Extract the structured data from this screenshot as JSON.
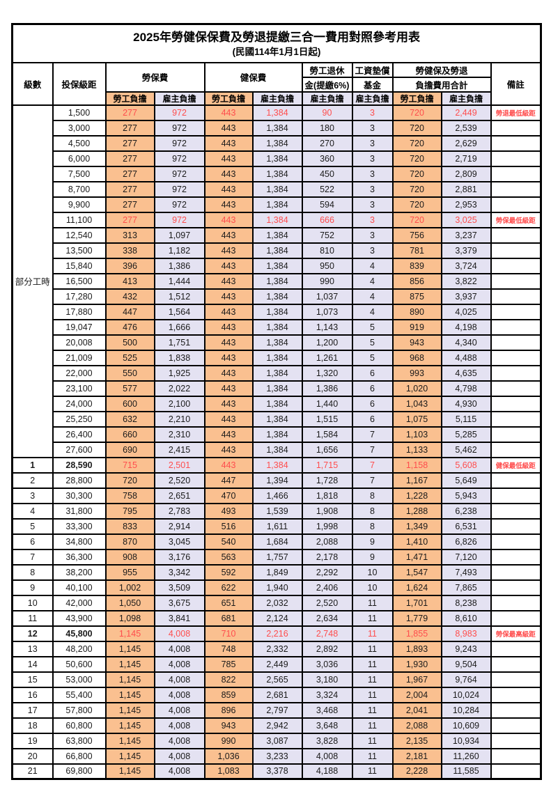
{
  "title": "2025年勞健保保費及勞退提繳三合一費用對照參考用表",
  "subtitle": "(民國114年1月1日起)",
  "colors": {
    "employee_bg": "#FAC090",
    "employer_bg": "#E4E2F2",
    "highlight_text": "#FF4D4D",
    "border": "#000000"
  },
  "header": {
    "level": "級數",
    "salary_bracket": "投保級距",
    "labor_insurance": "勞保費",
    "health_insurance": "健保費",
    "pension_line1": "勞工退休",
    "pension_line2": "金(提繳6%)",
    "wage_fund_line1": "工資墊償",
    "wage_fund_line2": "基金",
    "total_line1": "勞健保及勞退",
    "total_line2": "負擔費用合計",
    "remark": "備註",
    "employee_share": "勞工負擔",
    "employer_share": "雇主負擔"
  },
  "merged_level_label": "部分工時",
  "part_time_row_count": 23,
  "row_columns": [
    "level",
    "salary",
    "labor_employee",
    "labor_employer",
    "health_employee",
    "health_employer",
    "pension_employer",
    "wage_fund_employer",
    "total_employee",
    "total_employer",
    "remark",
    "highlighted"
  ],
  "rows": [
    [
      "",
      "1,500",
      "277",
      "972",
      "443",
      "1,384",
      "90",
      "3",
      "720",
      "2,449",
      "勞退最低級距",
      1
    ],
    [
      "",
      "3,000",
      "277",
      "972",
      "443",
      "1,384",
      "180",
      "3",
      "720",
      "2,539",
      "",
      0
    ],
    [
      "",
      "4,500",
      "277",
      "972",
      "443",
      "1,384",
      "270",
      "3",
      "720",
      "2,629",
      "",
      0
    ],
    [
      "",
      "6,000",
      "277",
      "972",
      "443",
      "1,384",
      "360",
      "3",
      "720",
      "2,719",
      "",
      0
    ],
    [
      "",
      "7,500",
      "277",
      "972",
      "443",
      "1,384",
      "450",
      "3",
      "720",
      "2,809",
      "",
      0
    ],
    [
      "",
      "8,700",
      "277",
      "972",
      "443",
      "1,384",
      "522",
      "3",
      "720",
      "2,881",
      "",
      0
    ],
    [
      "",
      "9,900",
      "277",
      "972",
      "443",
      "1,384",
      "594",
      "3",
      "720",
      "2,953",
      "",
      0
    ],
    [
      "",
      "11,100",
      "277",
      "972",
      "443",
      "1,384",
      "666",
      "3",
      "720",
      "3,025",
      "勞保最低級距",
      1
    ],
    [
      "",
      "12,540",
      "313",
      "1,097",
      "443",
      "1,384",
      "752",
      "3",
      "756",
      "3,237",
      "",
      0
    ],
    [
      "",
      "13,500",
      "338",
      "1,182",
      "443",
      "1,384",
      "810",
      "3",
      "781",
      "3,379",
      "",
      0
    ],
    [
      "",
      "15,840",
      "396",
      "1,386",
      "443",
      "1,384",
      "950",
      "4",
      "839",
      "3,724",
      "",
      0
    ],
    [
      "",
      "16,500",
      "413",
      "1,444",
      "443",
      "1,384",
      "990",
      "4",
      "856",
      "3,822",
      "",
      0
    ],
    [
      "",
      "17,280",
      "432",
      "1,512",
      "443",
      "1,384",
      "1,037",
      "4",
      "875",
      "3,937",
      "",
      0
    ],
    [
      "",
      "17,880",
      "447",
      "1,564",
      "443",
      "1,384",
      "1,073",
      "4",
      "890",
      "4,025",
      "",
      0
    ],
    [
      "",
      "19,047",
      "476",
      "1,666",
      "443",
      "1,384",
      "1,143",
      "5",
      "919",
      "4,198",
      "",
      0
    ],
    [
      "",
      "20,008",
      "500",
      "1,751",
      "443",
      "1,384",
      "1,200",
      "5",
      "943",
      "4,340",
      "",
      0
    ],
    [
      "",
      "21,009",
      "525",
      "1,838",
      "443",
      "1,384",
      "1,261",
      "5",
      "968",
      "4,488",
      "",
      0
    ],
    [
      "",
      "22,000",
      "550",
      "1,925",
      "443",
      "1,384",
      "1,320",
      "6",
      "993",
      "4,635",
      "",
      0
    ],
    [
      "",
      "23,100",
      "577",
      "2,022",
      "443",
      "1,384",
      "1,386",
      "6",
      "1,020",
      "4,798",
      "",
      0
    ],
    [
      "",
      "24,000",
      "600",
      "2,100",
      "443",
      "1,384",
      "1,440",
      "6",
      "1,043",
      "4,930",
      "",
      0
    ],
    [
      "",
      "25,250",
      "632",
      "2,210",
      "443",
      "1,384",
      "1,515",
      "6",
      "1,075",
      "5,115",
      "",
      0
    ],
    [
      "",
      "26,400",
      "660",
      "2,310",
      "443",
      "1,384",
      "1,584",
      "7",
      "1,103",
      "5,285",
      "",
      0
    ],
    [
      "",
      "27,600",
      "690",
      "2,415",
      "443",
      "1,384",
      "1,656",
      "7",
      "1,133",
      "5,462",
      "",
      0
    ],
    [
      "1",
      "28,590",
      "715",
      "2,501",
      "443",
      "1,384",
      "1,715",
      "7",
      "1,158",
      "5,608",
      "健保最低級距",
      1
    ],
    [
      "2",
      "28,800",
      "720",
      "2,520",
      "447",
      "1,394",
      "1,728",
      "7",
      "1,167",
      "5,649",
      "",
      0
    ],
    [
      "3",
      "30,300",
      "758",
      "2,651",
      "470",
      "1,466",
      "1,818",
      "8",
      "1,228",
      "5,943",
      "",
      0
    ],
    [
      "4",
      "31,800",
      "795",
      "2,783",
      "493",
      "1,539",
      "1,908",
      "8",
      "1,288",
      "6,238",
      "",
      0
    ],
    [
      "5",
      "33,300",
      "833",
      "2,914",
      "516",
      "1,611",
      "1,998",
      "8",
      "1,349",
      "6,531",
      "",
      0
    ],
    [
      "6",
      "34,800",
      "870",
      "3,045",
      "540",
      "1,684",
      "2,088",
      "9",
      "1,410",
      "6,826",
      "",
      0
    ],
    [
      "7",
      "36,300",
      "908",
      "3,176",
      "563",
      "1,757",
      "2,178",
      "9",
      "1,471",
      "7,120",
      "",
      0
    ],
    [
      "8",
      "38,200",
      "955",
      "3,342",
      "592",
      "1,849",
      "2,292",
      "10",
      "1,547",
      "7,493",
      "",
      0
    ],
    [
      "9",
      "40,100",
      "1,002",
      "3,509",
      "622",
      "1,940",
      "2,406",
      "10",
      "1,624",
      "7,865",
      "",
      0
    ],
    [
      "10",
      "42,000",
      "1,050",
      "3,675",
      "651",
      "2,032",
      "2,520",
      "11",
      "1,701",
      "8,238",
      "",
      0
    ],
    [
      "11",
      "43,900",
      "1,098",
      "3,841",
      "681",
      "2,124",
      "2,634",
      "11",
      "1,779",
      "8,610",
      "",
      0
    ],
    [
      "12",
      "45,800",
      "1,145",
      "4,008",
      "710",
      "2,216",
      "2,748",
      "11",
      "1,855",
      "8,983",
      "勞保最高級距",
      1
    ],
    [
      "13",
      "48,200",
      "1,145",
      "4,008",
      "748",
      "2,332",
      "2,892",
      "11",
      "1,893",
      "9,243",
      "",
      0
    ],
    [
      "14",
      "50,600",
      "1,145",
      "4,008",
      "785",
      "2,449",
      "3,036",
      "11",
      "1,930",
      "9,504",
      "",
      0
    ],
    [
      "15",
      "53,000",
      "1,145",
      "4,008",
      "822",
      "2,565",
      "3,180",
      "11",
      "1,967",
      "9,764",
      "",
      0
    ],
    [
      "16",
      "55,400",
      "1,145",
      "4,008",
      "859",
      "2,681",
      "3,324",
      "11",
      "2,004",
      "10,024",
      "",
      0
    ],
    [
      "17",
      "57,800",
      "1,145",
      "4,008",
      "896",
      "2,797",
      "3,468",
      "11",
      "2,041",
      "10,284",
      "",
      0
    ],
    [
      "18",
      "60,800",
      "1,145",
      "4,008",
      "943",
      "2,942",
      "3,648",
      "11",
      "2,088",
      "10,609",
      "",
      0
    ],
    [
      "19",
      "63,800",
      "1,145",
      "4,008",
      "990",
      "3,087",
      "3,828",
      "11",
      "2,135",
      "10,934",
      "",
      0
    ],
    [
      "20",
      "66,800",
      "1,145",
      "4,008",
      "1,036",
      "3,233",
      "4,008",
      "11",
      "2,181",
      "11,260",
      "",
      0
    ],
    [
      "21",
      "69,800",
      "1,145",
      "4,008",
      "1,083",
      "3,378",
      "4,188",
      "11",
      "2,228",
      "11,585",
      "",
      0
    ]
  ]
}
